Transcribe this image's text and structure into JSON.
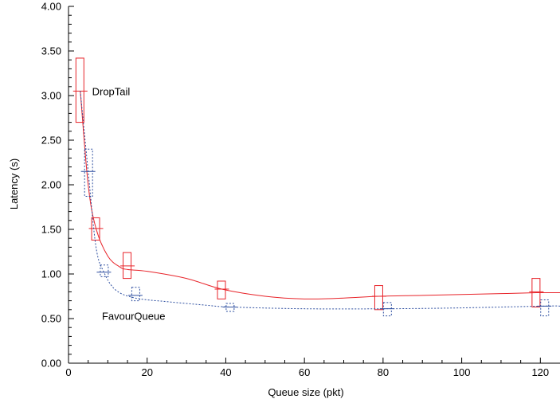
{
  "chart_data": {
    "type": "line",
    "title": "",
    "xlabel": "Queue size (pkt)",
    "ylabel": "Latency (s)",
    "xlim": [
      0,
      125
    ],
    "ylim": [
      0,
      4
    ],
    "x_ticks": [
      0,
      20,
      40,
      60,
      80,
      100,
      120
    ],
    "x_tick_labels": [
      "0",
      "20",
      "40",
      "60",
      "80",
      "100",
      "120"
    ],
    "y_ticks": [
      0,
      0.5,
      1,
      1.5,
      2,
      2.5,
      3,
      3.5,
      4
    ],
    "y_tick_labels": [
      "0.00",
      "0.50",
      "1.00",
      "1.50",
      "2.00",
      "2.50",
      "3.00",
      "3.50",
      "4.00"
    ],
    "grid": false,
    "series": [
      {
        "name": "DropTail",
        "color": "#e8242a",
        "line_style": "solid",
        "label_at": [
          6,
          3.05
        ],
        "box_offset": -0.5,
        "points": [
          {
            "x": 3,
            "y": 3.05,
            "lo": 2.7,
            "hi": 3.42
          },
          {
            "x": 7,
            "y": 1.51,
            "lo": 1.38,
            "hi": 1.63
          },
          {
            "x": 15,
            "y": 1.09,
            "lo": 0.95,
            "hi": 1.24
          },
          {
            "x": 39,
            "y": 0.83,
            "lo": 0.72,
            "hi": 0.92
          },
          {
            "x": 79,
            "y": 0.75,
            "lo": 0.6,
            "hi": 0.87
          },
          {
            "x": 119,
            "y": 0.8,
            "lo": 0.63,
            "hi": 0.95
          }
        ],
        "curve": [
          [
            3,
            3.05
          ],
          [
            5,
            2.0
          ],
          [
            7,
            1.51
          ],
          [
            10,
            1.2
          ],
          [
            13,
            1.08
          ],
          [
            15,
            1.05
          ],
          [
            20,
            1.03
          ],
          [
            30,
            0.95
          ],
          [
            39,
            0.83
          ],
          [
            50,
            0.75
          ],
          [
            60,
            0.72
          ],
          [
            70,
            0.73
          ],
          [
            79,
            0.75
          ],
          [
            90,
            0.76
          ],
          [
            100,
            0.77
          ],
          [
            110,
            0.78
          ],
          [
            119,
            0.79
          ],
          [
            125,
            0.79
          ]
        ]
      },
      {
        "name": "FavourQueue",
        "color": "#2e4fa0",
        "line_style": "dotted",
        "label_at": [
          8.5,
          0.53
        ],
        "box_offset": 0.5,
        "points": [
          {
            "x": 5,
            "y": 2.15,
            "lo": 1.87,
            "hi": 2.4
          },
          {
            "x": 9,
            "y": 1.02,
            "lo": 0.97,
            "hi": 1.1
          },
          {
            "x": 17,
            "y": 0.76,
            "lo": 0.7,
            "hi": 0.85
          },
          {
            "x": 41,
            "y": 0.63,
            "lo": 0.58,
            "hi": 0.67
          },
          {
            "x": 81,
            "y": 0.61,
            "lo": 0.53,
            "hi": 0.68
          },
          {
            "x": 121,
            "y": 0.64,
            "lo": 0.53,
            "hi": 0.71
          }
        ],
        "curve": [
          [
            3,
            3.05
          ],
          [
            5,
            2.15
          ],
          [
            7,
            1.3
          ],
          [
            9,
            1.02
          ],
          [
            12,
            0.82
          ],
          [
            17,
            0.73
          ],
          [
            25,
            0.69
          ],
          [
            35,
            0.65
          ],
          [
            41,
            0.63
          ],
          [
            60,
            0.61
          ],
          [
            81,
            0.61
          ],
          [
            100,
            0.62
          ],
          [
            121,
            0.64
          ],
          [
            125,
            0.64
          ]
        ]
      }
    ]
  }
}
